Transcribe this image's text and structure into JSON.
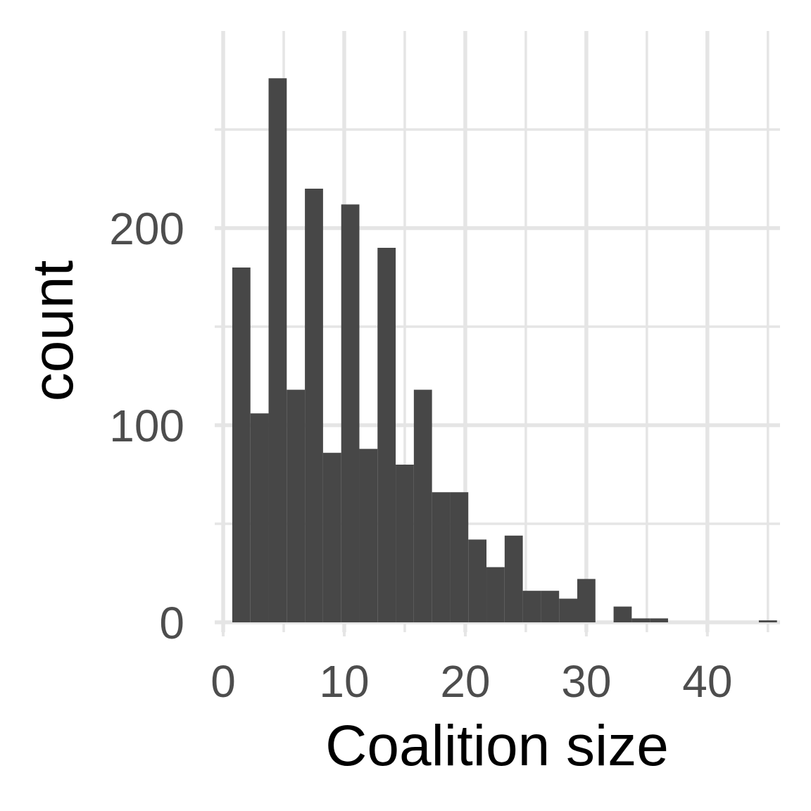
{
  "chart_data": {
    "type": "bar",
    "xlabel": "Coalition size",
    "ylabel": "count",
    "xlim": [
      -0.7,
      46
    ],
    "ylim": [
      -5,
      300
    ],
    "x_ticks": [
      0,
      10,
      20,
      30,
      40
    ],
    "x_tick_labels": [
      "0",
      "10",
      "20",
      "30",
      "40"
    ],
    "y_ticks": [
      0,
      100,
      200
    ],
    "y_tick_labels": [
      "0",
      "100",
      "200"
    ],
    "x_minor_ticks": [
      5,
      15,
      25,
      35,
      45
    ],
    "y_minor_ticks": [
      50,
      150,
      250
    ],
    "grid": true,
    "bin_width": 1.5,
    "bins": [
      {
        "x": 1.5,
        "count": 180
      },
      {
        "x": 3.0,
        "count": 106
      },
      {
        "x": 4.5,
        "count": 276
      },
      {
        "x": 6.0,
        "count": 118
      },
      {
        "x": 7.5,
        "count": 220
      },
      {
        "x": 9.0,
        "count": 86
      },
      {
        "x": 10.5,
        "count": 212
      },
      {
        "x": 12.0,
        "count": 88
      },
      {
        "x": 13.5,
        "count": 190
      },
      {
        "x": 15.0,
        "count": 80
      },
      {
        "x": 16.5,
        "count": 118
      },
      {
        "x": 18.0,
        "count": 66
      },
      {
        "x": 19.5,
        "count": 66
      },
      {
        "x": 21.0,
        "count": 42
      },
      {
        "x": 22.5,
        "count": 28
      },
      {
        "x": 24.0,
        "count": 44
      },
      {
        "x": 25.5,
        "count": 16
      },
      {
        "x": 27.0,
        "count": 16
      },
      {
        "x": 28.5,
        "count": 12
      },
      {
        "x": 30.0,
        "count": 22
      },
      {
        "x": 31.5,
        "count": 0
      },
      {
        "x": 33.0,
        "count": 8
      },
      {
        "x": 34.5,
        "count": 2
      },
      {
        "x": 36.0,
        "count": 2
      },
      {
        "x": 37.5,
        "count": 0
      },
      {
        "x": 39.0,
        "count": 0
      },
      {
        "x": 40.5,
        "count": 0
      },
      {
        "x": 42.0,
        "count": 0
      },
      {
        "x": 43.5,
        "count": 0
      },
      {
        "x": 45.0,
        "count": 1
      }
    ]
  }
}
